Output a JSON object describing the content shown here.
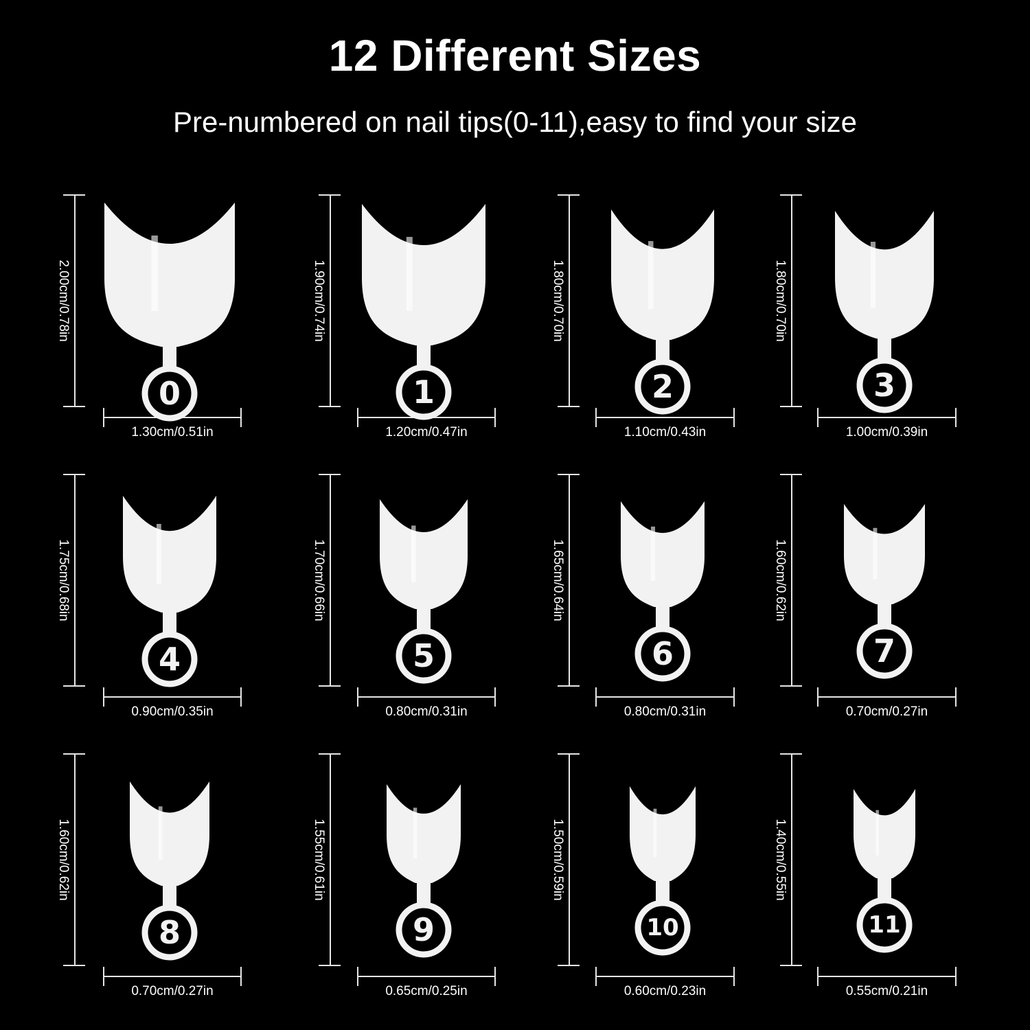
{
  "header": {
    "title": "12 Different Sizes",
    "subtitle": "Pre-numbered on nail tips(0-11),easy to find your size"
  },
  "nails": [
    {
      "number": "0",
      "length": "2.00cm/0.78in",
      "width": "1.30cm/0.51in"
    },
    {
      "number": "1",
      "length": "1.90cm/0.74in",
      "width": "1.20cm/0.47in"
    },
    {
      "number": "2",
      "length": "1.80cm/0.70in",
      "width": "1.10cm/0.43in"
    },
    {
      "number": "3",
      "length": "1.80cm/0.70in",
      "width": "1.00cm/0.39in"
    },
    {
      "number": "4",
      "length": "1.75cm/0.68in",
      "width": "0.90cm/0.35in"
    },
    {
      "number": "5",
      "length": "1.70cm/0.66in",
      "width": "0.80cm/0.31in"
    },
    {
      "number": "6",
      "length": "1.65cm/0.64in",
      "width": "0.80cm/0.31in"
    },
    {
      "number": "7",
      "length": "1.60cm/0.62in",
      "width": "0.70cm/0.27in"
    },
    {
      "number": "8",
      "length": "1.60cm/0.62in",
      "width": "0.70cm/0.27in"
    },
    {
      "number": "9",
      "length": "1.55cm/0.61in",
      "width": "0.65cm/0.25in"
    },
    {
      "number": "10",
      "length": "1.50cm/0.59in",
      "width": "0.60cm/0.23in"
    },
    {
      "number": "11",
      "length": "1.40cm/0.55in",
      "width": "0.55cm/0.21in"
    }
  ],
  "colors": {
    "background": "#000000",
    "nail": "#f2f2f2",
    "text": "#ffffff"
  }
}
